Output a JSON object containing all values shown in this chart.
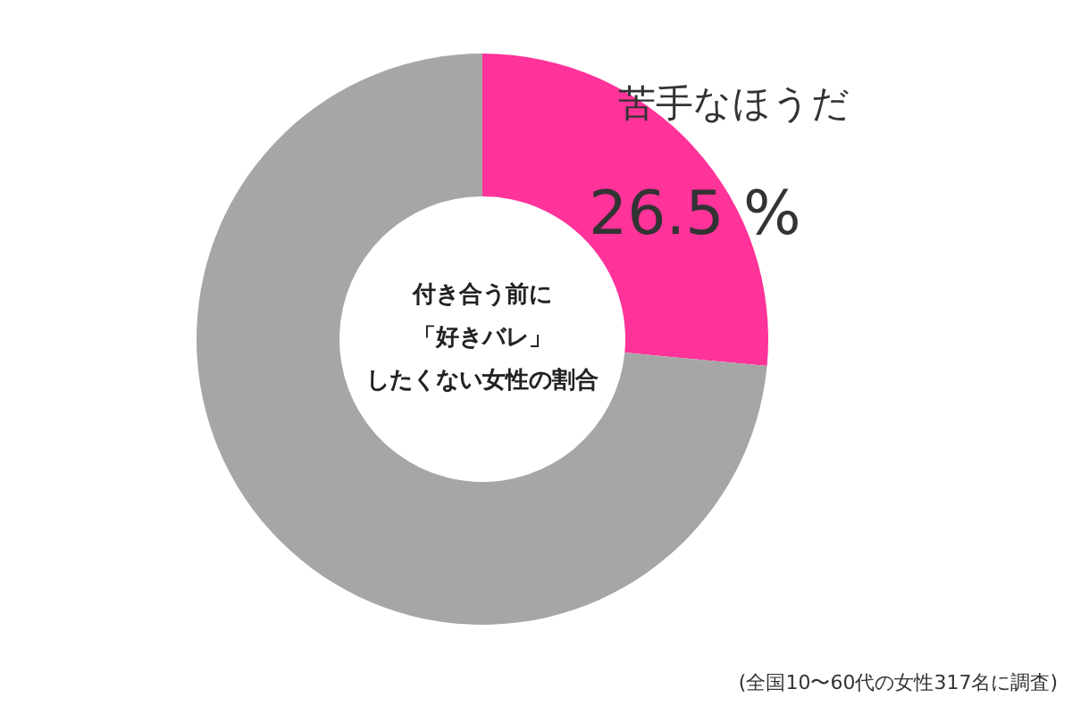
{
  "chart_data": {
    "type": "donut",
    "title": "付き合う前に「好きバレ」したくない女性の割合",
    "categories": [
      "苦手なほうだ",
      null
    ],
    "values": [
      26.5,
      73.5
    ],
    "colors": [
      "#ff3399",
      "#a6a6a6"
    ],
    "value_labels": [
      "26.5 %",
      null
    ],
    "annotations": [
      "(全国10〜60代の女性317名に調査)"
    ]
  }
}
